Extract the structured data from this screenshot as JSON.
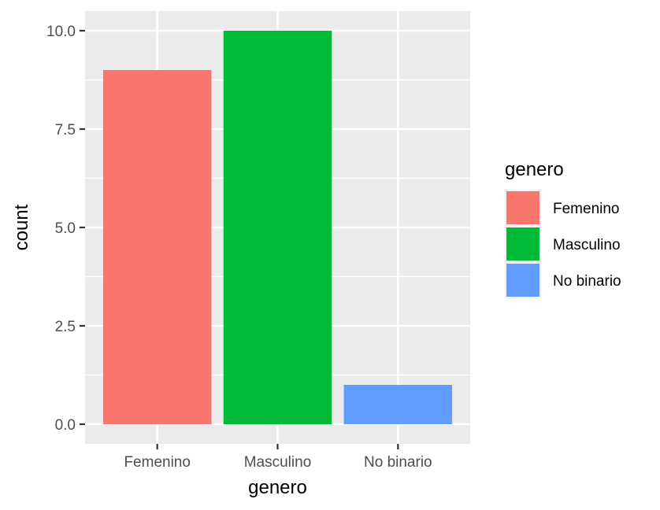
{
  "chart_data": {
    "type": "bar",
    "categories": [
      "Femenino",
      "Masculino",
      "No binario"
    ],
    "values": [
      9,
      10,
      1
    ],
    "colors": [
      "#F8766D",
      "#00BA38",
      "#619CFF"
    ],
    "xlabel": "genero",
    "ylabel": "count",
    "ylim": [
      -0.5,
      10.5
    ],
    "yticks": [
      0.0,
      2.5,
      5.0,
      7.5,
      10.0
    ],
    "ytick_labels": [
      "0.0",
      "2.5",
      "5.0",
      "7.5",
      "10.0"
    ],
    "grid": true,
    "panel_background": "#EBEBEB",
    "grid_color": "#FFFFFF",
    "legend": {
      "title": "genero",
      "position": "right",
      "entries": [
        "Femenino",
        "Masculino",
        "No binario"
      ]
    }
  }
}
